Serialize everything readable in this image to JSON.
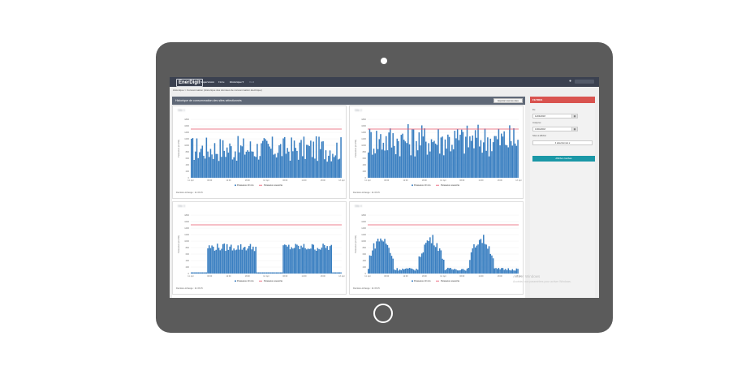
{
  "navbar": {
    "logo": "EnerDigit",
    "items": [
      "Supervision",
      "Flotte",
      "Historique ▾",
      "Outil"
    ]
  },
  "breadcrumb": "Historique > Consommation (Historique des données de consommation électrique)",
  "panel": {
    "title": "Historique de consommation des sites sélectionnés",
    "export_label": "Exporter tous les sites"
  },
  "legend": {
    "power_label": "Puissance 10 min",
    "subscribed_label": "Puissance souscrite",
    "colors": {
      "power": "#3a7fc1",
      "subscribed": "#e8546a"
    }
  },
  "charts": [
    {
      "title": "Site 1",
      "last_exchange": "Dernière échange : 11:15:15"
    },
    {
      "title": "Site 2",
      "last_exchange": "Dernière échange : 11:15:15"
    },
    {
      "title": "Site 3",
      "last_exchange": "Dernière échange : 11:15:15"
    },
    {
      "title": "Site 4",
      "last_exchange": "Dernière échange : 11:15:15"
    }
  ],
  "chart_data": [
    {
      "type": "bar",
      "ylabel": "Puissance (en kW)",
      "yticks": [
        "0",
        "200",
        "400",
        "600",
        "800",
        "1000",
        "1200",
        "1400",
        "1600",
        "1800"
      ],
      "ylim": [
        0,
        1800
      ],
      "xticks": [
        "11. Apr",
        "06:00",
        "12:00",
        "18:00",
        "12. Apr",
        "06:00",
        "12:00",
        "18:00",
        "13. Apr"
      ],
      "subscribed_value": 1500,
      "pattern": "dense",
      "level": 0.55
    },
    {
      "type": "bar",
      "ylabel": "Puissance (en kW)",
      "yticks": [
        "0",
        "200",
        "400",
        "600",
        "800",
        "1000",
        "1200",
        "1400",
        "1600",
        "1800"
      ],
      "ylim": [
        0,
        1800
      ],
      "xticks": [
        "11. Apr",
        "06:00",
        "12:00",
        "18:00",
        "12. Apr",
        "06:00",
        "12:00",
        "18:00",
        "13. Apr"
      ],
      "subscribed_value": 1500,
      "pattern": "dense",
      "level": 0.72
    },
    {
      "type": "bar",
      "ylabel": "Puissance (en kW)",
      "yticks": [
        "0",
        "200",
        "400",
        "600",
        "800",
        "1000",
        "1200",
        "1400",
        "1600",
        "1800"
      ],
      "ylim": [
        0,
        1800
      ],
      "xticks": [
        "11. Apr",
        "06:00",
        "12:00",
        "18:00",
        "12. Apr",
        "06:00",
        "12:00",
        "18:00",
        "13. Apr"
      ],
      "subscribed_value": 1500,
      "pattern": "two-blocks",
      "level": 0.45
    },
    {
      "type": "bar",
      "ylabel": "Puissance (en kW)",
      "yticks": [
        "0",
        "200",
        "400",
        "600",
        "800",
        "1000",
        "1200",
        "1400",
        "1600",
        "1800"
      ],
      "ylim": [
        0,
        1800
      ],
      "xticks": [
        "11. Apr",
        "06:00",
        "12:00",
        "18:00",
        "12. Apr",
        "06:00",
        "12:00",
        "18:00",
        "13. Apr"
      ],
      "subscribed_value": 1500,
      "pattern": "waves",
      "level": 0.62
    }
  ],
  "sidebar": {
    "header": "FILTRES",
    "du_label": "Du",
    "du_value": "11/04/2018",
    "au_label": "Jusqu'au",
    "au_value": "13/04/2018",
    "sites_label": "Sites à afficher",
    "sites_value": "4 sélectionnés ▾",
    "button": "Afficher courbes"
  },
  "watermark": {
    "line1": "Activer Windows",
    "line2": "Accédez aux paramètres pour activer Windows."
  }
}
